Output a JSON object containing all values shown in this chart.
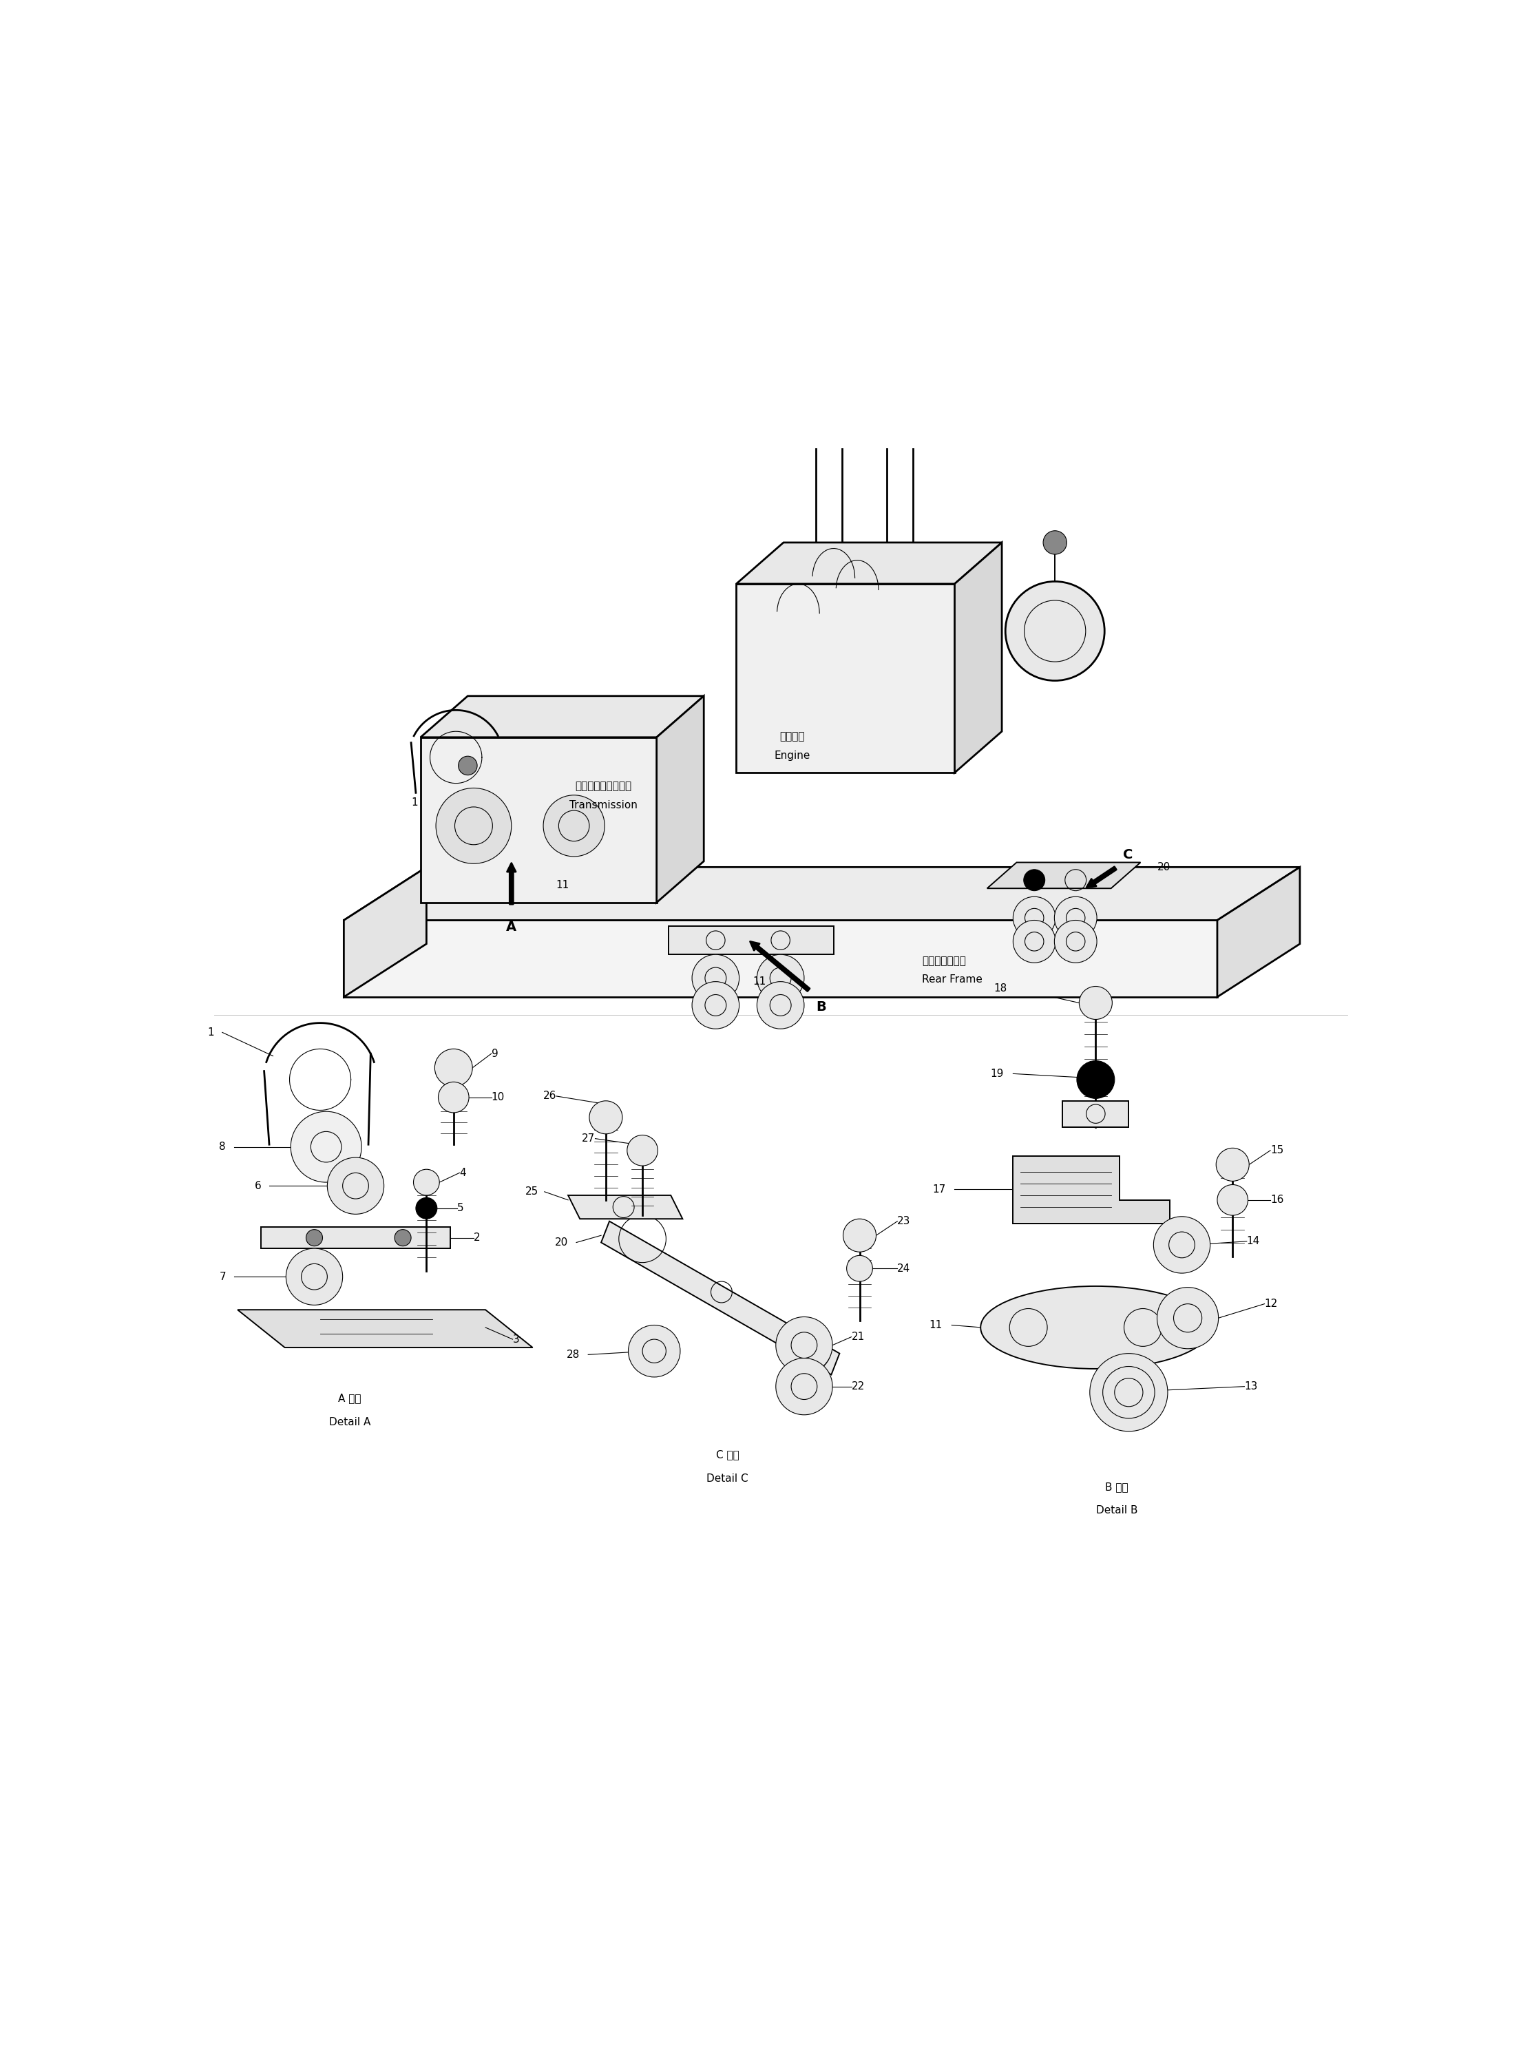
{
  "bg_color": "#ffffff",
  "fig_width": 22.12,
  "fig_height": 29.86,
  "labels": {
    "engine_jp": "エンジン",
    "engine_en": "Engine",
    "transmission_jp": "トランスミッション",
    "transmission_en": "Transmission",
    "rear_frame_jp": "リヤーフレーム",
    "rear_frame_en": "Rear Frame",
    "detail_a_jp": "A 詳細",
    "detail_a_en": "Detail A",
    "detail_b_jp": "B 詳細",
    "detail_b_en": "Detail B",
    "detail_c_jp": "C 詳細",
    "detail_c_en": "Detail C"
  }
}
